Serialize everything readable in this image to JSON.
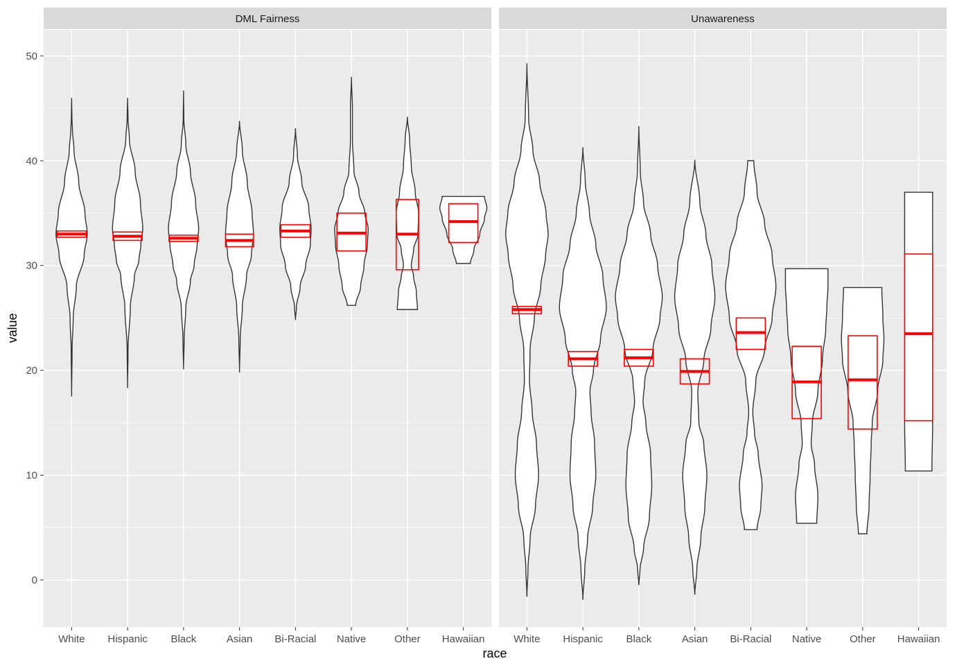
{
  "chart_data": {
    "type": "violin",
    "title": "",
    "xlabel": "race",
    "ylabel": "value",
    "ylim": [
      -4.5,
      52.5
    ],
    "yticks": [
      0,
      10,
      20,
      30,
      40,
      50
    ],
    "categories": [
      "White",
      "Hispanic",
      "Black",
      "Asian",
      "Bi-Racial",
      "Native",
      "Other",
      "Hawaiian"
    ],
    "colors": {
      "panel_bg": "#ebebeb",
      "strip_bg": "#d9d9d9",
      "grid": "#ffffff",
      "violin_fill": "#ffffff",
      "violin_stroke": "#333333",
      "summary": "#ff0000"
    },
    "facets": [
      {
        "label": "DML Fairness",
        "groups": [
          {
            "category": "White",
            "min": 17.5,
            "max": 46.0,
            "halfwidth": 0.28,
            "profile": [
              [
                17.5,
                0.0
              ],
              [
                22,
                0.03
              ],
              [
                25,
                0.1
              ],
              [
                28,
                0.3
              ],
              [
                31,
                0.8
              ],
              [
                33,
                1.0
              ],
              [
                35,
                0.85
              ],
              [
                38,
                0.45
              ],
              [
                41,
                0.15
              ],
              [
                43,
                0.05
              ],
              [
                44,
                0.02
              ],
              [
                46,
                0.0
              ]
            ],
            "box": {
              "q1": 32.7,
              "median": 33.0,
              "q3": 33.3
            }
          },
          {
            "category": "Hispanic",
            "min": 18.3,
            "max": 46.0,
            "halfwidth": 0.27,
            "profile": [
              [
                18.3,
                0.0
              ],
              [
                22,
                0.03
              ],
              [
                26,
                0.18
              ],
              [
                29,
                0.45
              ],
              [
                30.5,
                0.75
              ],
              [
                32,
                0.88
              ],
              [
                33.5,
                1.0
              ],
              [
                36,
                0.85
              ],
              [
                39,
                0.5
              ],
              [
                42,
                0.12
              ],
              [
                44,
                0.03
              ],
              [
                46,
                0.0
              ]
            ],
            "box": {
              "q1": 32.4,
              "median": 32.8,
              "q3": 33.2
            }
          },
          {
            "category": "Black",
            "min": 20.1,
            "max": 46.7,
            "halfwidth": 0.27,
            "profile": [
              [
                20.1,
                0.0
              ],
              [
                23,
                0.04
              ],
              [
                26,
                0.15
              ],
              [
                28.5,
                0.45
              ],
              [
                30,
                0.7
              ],
              [
                32,
                0.9
              ],
              [
                33.5,
                1.0
              ],
              [
                36,
                0.8
              ],
              [
                39,
                0.45
              ],
              [
                41.5,
                0.15
              ],
              [
                44,
                0.02
              ],
              [
                46.7,
                0.0
              ]
            ],
            "box": {
              "q1": 32.3,
              "median": 32.6,
              "q3": 32.9
            }
          },
          {
            "category": "Asian",
            "min": 19.8,
            "max": 43.8,
            "halfwidth": 0.25,
            "profile": [
              [
                19.8,
                0.0
              ],
              [
                23,
                0.05
              ],
              [
                26,
                0.2
              ],
              [
                29,
                0.5
              ],
              [
                31,
                0.85
              ],
              [
                33,
                1.0
              ],
              [
                35,
                0.9
              ],
              [
                38,
                0.55
              ],
              [
                41,
                0.2
              ],
              [
                43.8,
                0.0
              ]
            ],
            "box": {
              "q1": 31.8,
              "median": 32.4,
              "q3": 33.0
            }
          },
          {
            "category": "Bi-Racial",
            "min": 24.8,
            "max": 43.1,
            "halfwidth": 0.28,
            "profile": [
              [
                24.8,
                0.0
              ],
              [
                26,
                0.06
              ],
              [
                28,
                0.3
              ],
              [
                30,
                0.65
              ],
              [
                32,
                0.95
              ],
              [
                33.5,
                1.0
              ],
              [
                35.5,
                0.85
              ],
              [
                38,
                0.4
              ],
              [
                40.5,
                0.12
              ],
              [
                43.1,
                0.0
              ]
            ],
            "box": {
              "q1": 32.7,
              "median": 33.3,
              "q3": 33.9
            }
          },
          {
            "category": "Native",
            "min": 26.2,
            "max": 48.0,
            "halfwidth": 0.3,
            "profile": [
              [
                26.2,
                0.25
              ],
              [
                28,
                0.55
              ],
              [
                30,
                0.75
              ],
              [
                32,
                0.95
              ],
              [
                33.5,
                1.0
              ],
              [
                35,
                0.8
              ],
              [
                37,
                0.45
              ],
              [
                39,
                0.15
              ],
              [
                42,
                0.06
              ],
              [
                45,
                0.06
              ],
              [
                48,
                0.0
              ]
            ],
            "box": {
              "q1": 31.4,
              "median": 33.1,
              "q3": 35.0
            }
          },
          {
            "category": "Other",
            "min": 25.8,
            "max": 44.2,
            "halfwidth": 0.2,
            "profile": [
              [
                25.8,
                0.9
              ],
              [
                27.5,
                0.8
              ],
              [
                29,
                0.55
              ],
              [
                30,
                0.35
              ],
              [
                31.5,
                0.55
              ],
              [
                33,
                0.95
              ],
              [
                35,
                1.0
              ],
              [
                37,
                0.7
              ],
              [
                39.5,
                0.35
              ],
              [
                42,
                0.2
              ],
              [
                44.2,
                0.0
              ]
            ],
            "box": {
              "q1": 29.6,
              "median": 33.0,
              "q3": 36.3
            }
          },
          {
            "category": "Hawaiian",
            "min": 30.2,
            "max": 36.6,
            "halfwidth": 0.42,
            "profile": [
              [
                30.2,
                0.3
              ],
              [
                31.5,
                0.45
              ],
              [
                33,
                0.7
              ],
              [
                34.5,
                0.9
              ],
              [
                35.5,
                1.0
              ],
              [
                36.6,
                0.9
              ]
            ],
            "box": {
              "q1": 32.2,
              "median": 34.2,
              "q3": 35.9
            }
          }
        ]
      },
      {
        "label": "Unawareness",
        "groups": [
          {
            "category": "White",
            "min": -1.6,
            "max": 49.3,
            "halfwidth": 0.38,
            "profile": [
              [
                -1.6,
                0.0
              ],
              [
                1,
                0.05
              ],
              [
                4,
                0.15
              ],
              [
                7,
                0.4
              ],
              [
                10,
                0.55
              ],
              [
                13,
                0.45
              ],
              [
                16,
                0.25
              ],
              [
                19,
                0.12
              ],
              [
                22,
                0.15
              ],
              [
                25,
                0.35
              ],
              [
                28,
                0.65
              ],
              [
                31,
                0.88
              ],
              [
                33,
                1.0
              ],
              [
                35,
                0.9
              ],
              [
                38,
                0.6
              ],
              [
                41,
                0.28
              ],
              [
                44,
                0.08
              ],
              [
                49.3,
                0.0
              ]
            ],
            "box": {
              "q1": 25.4,
              "median": 25.8,
              "q3": 26.1
            }
          },
          {
            "category": "Hispanic",
            "min": -1.9,
            "max": 41.3,
            "halfwidth": 0.42,
            "profile": [
              [
                -1.9,
                0.0
              ],
              [
                1,
                0.08
              ],
              [
                4,
                0.2
              ],
              [
                7,
                0.42
              ],
              [
                10,
                0.55
              ],
              [
                13,
                0.5
              ],
              [
                16,
                0.35
              ],
              [
                18,
                0.3
              ],
              [
                20,
                0.45
              ],
              [
                23,
                0.75
              ],
              [
                26,
                1.0
              ],
              [
                29,
                0.85
              ],
              [
                32,
                0.55
              ],
              [
                35,
                0.28
              ],
              [
                38,
                0.1
              ],
              [
                41.3,
                0.0
              ]
            ],
            "box": {
              "q1": 20.4,
              "median": 21.1,
              "q3": 21.8
            }
          },
          {
            "category": "Black",
            "min": -0.5,
            "max": 43.3,
            "halfwidth": 0.42,
            "profile": [
              [
                -0.5,
                0.0
              ],
              [
                1,
                0.05
              ],
              [
                3,
                0.2
              ],
              [
                6,
                0.45
              ],
              [
                9,
                0.55
              ],
              [
                12,
                0.5
              ],
              [
                15,
                0.3
              ],
              [
                17,
                0.18
              ],
              [
                19,
                0.25
              ],
              [
                22,
                0.6
              ],
              [
                25,
                0.9
              ],
              [
                27,
                1.0
              ],
              [
                30,
                0.8
              ],
              [
                33,
                0.5
              ],
              [
                36,
                0.2
              ],
              [
                39,
                0.06
              ],
              [
                43.3,
                0.0
              ]
            ],
            "box": {
              "q1": 20.4,
              "median": 21.2,
              "q3": 22.0
            }
          },
          {
            "category": "Asian",
            "min": -1.4,
            "max": 40.1,
            "halfwidth": 0.36,
            "profile": [
              [
                -1.4,
                0.0
              ],
              [
                1,
                0.1
              ],
              [
                4,
                0.3
              ],
              [
                7,
                0.5
              ],
              [
                10,
                0.6
              ],
              [
                13,
                0.45
              ],
              [
                15,
                0.2
              ],
              [
                18,
                0.15
              ],
              [
                21,
                0.45
              ],
              [
                24,
                0.8
              ],
              [
                27,
                1.0
              ],
              [
                30,
                0.85
              ],
              [
                33,
                0.55
              ],
              [
                36,
                0.25
              ],
              [
                40.1,
                0.0
              ]
            ],
            "box": {
              "q1": 18.7,
              "median": 19.9,
              "q3": 21.1
            }
          },
          {
            "category": "Bi-Racial",
            "min": 4.8,
            "max": 40.0,
            "halfwidth": 0.45,
            "profile": [
              [
                4.8,
                0.25
              ],
              [
                7,
                0.4
              ],
              [
                9,
                0.45
              ],
              [
                12,
                0.3
              ],
              [
                14,
                0.15
              ],
              [
                16,
                0.08
              ],
              [
                19,
                0.2
              ],
              [
                22,
                0.55
              ],
              [
                25,
                0.85
              ],
              [
                28,
                1.0
              ],
              [
                31,
                0.85
              ],
              [
                34,
                0.55
              ],
              [
                37,
                0.25
              ],
              [
                40,
                0.12
              ]
            ],
            "box": {
              "q1": 22.0,
              "median": 23.6,
              "q3": 25.0
            }
          },
          {
            "category": "Native",
            "min": 5.4,
            "max": 29.7,
            "halfwidth": 0.4,
            "profile": [
              [
                5.4,
                0.45
              ],
              [
                8,
                0.5
              ],
              [
                11,
                0.35
              ],
              [
                13,
                0.2
              ],
              [
                15,
                0.25
              ],
              [
                18,
                0.5
              ],
              [
                21,
                0.7
              ],
              [
                24,
                0.85
              ],
              [
                26,
                0.9
              ],
              [
                28,
                0.95
              ],
              [
                29.7,
                0.95
              ]
            ],
            "box": {
              "q1": 15.4,
              "median": 18.9,
              "q3": 22.3
            }
          },
          {
            "category": "Other",
            "min": 4.4,
            "max": 27.9,
            "halfwidth": 0.38,
            "profile": [
              [
                4.4,
                0.2
              ],
              [
                7,
                0.3
              ],
              [
                10,
                0.35
              ],
              [
                13,
                0.4
              ],
              [
                15,
                0.45
              ],
              [
                18,
                0.7
              ],
              [
                21,
                0.95
              ],
              [
                23,
                1.0
              ],
              [
                25,
                0.95
              ],
              [
                27.9,
                0.9
              ]
            ],
            "box": {
              "q1": 14.4,
              "median": 19.1,
              "q3": 23.3
            }
          },
          {
            "category": "Hawaiian",
            "min": 10.4,
            "max": 37.0,
            "halfwidth": 0.25,
            "profile": [
              [
                10.4,
                0.95
              ],
              [
                15,
                1.0
              ],
              [
                20,
                1.0
              ],
              [
                25,
                1.0
              ],
              [
                30,
                1.0
              ],
              [
                35,
                1.0
              ],
              [
                37,
                1.0
              ]
            ],
            "box": {
              "q1": 15.2,
              "median": 23.5,
              "q3": 31.1
            }
          }
        ]
      }
    ]
  }
}
